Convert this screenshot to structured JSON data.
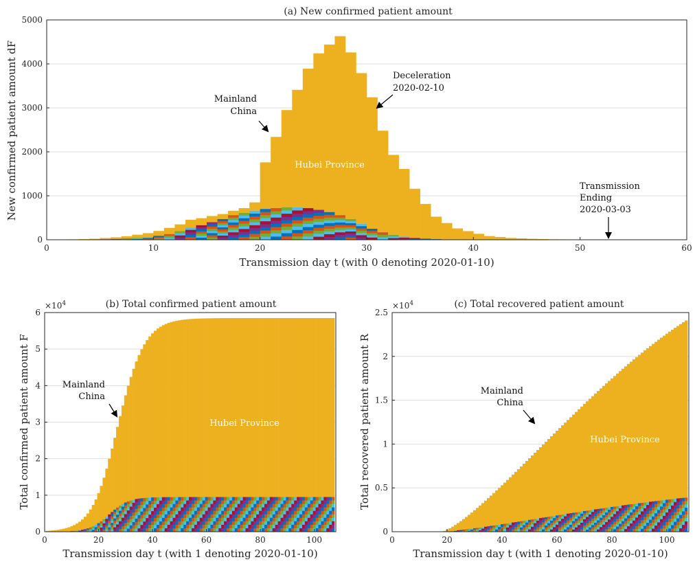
{
  "chart_data": [
    {
      "id": "a",
      "type": "bar",
      "stacked": true,
      "title": "(a) New confirmed patient amount",
      "xlabel": "Transmission day t (with 0 denoting 2020-01-10)",
      "ylabel": "New confirmed patient amount dF",
      "xlim": [
        0,
        60
      ],
      "ylim": [
        0,
        5000
      ],
      "xticks": [
        "0",
        "10",
        "20",
        "30",
        "40",
        "50",
        "60"
      ],
      "yticks": [
        "0",
        "1000",
        "2000",
        "3000",
        "4000",
        "5000"
      ],
      "grid": true,
      "series": [
        {
          "label": "Hubei Province",
          "color": "#EDB120",
          "x": [
            1,
            2,
            3,
            4,
            5,
            6,
            7,
            8,
            9,
            10,
            11,
            12,
            13,
            14,
            15,
            16,
            17,
            18,
            19,
            20,
            21,
            22,
            23,
            24,
            25,
            26,
            27,
            28,
            29,
            30,
            31,
            32,
            33,
            34,
            35,
            36,
            37,
            38,
            39,
            40,
            41,
            42,
            43,
            44,
            45,
            46,
            47,
            48,
            49,
            50,
            51,
            52,
            53,
            54,
            55,
            56,
            57,
            58,
            59,
            60
          ],
          "values": [
            3,
            4,
            6,
            10,
            15,
            28,
            38,
            50,
            70,
            90,
            110,
            140,
            155,
            175,
            160,
            140,
            115,
            100,
            110,
            190,
            1060,
            1620,
            2210,
            2670,
            3170,
            3560,
            3810,
            4070,
            3790,
            3430,
            2990,
            2310,
            1820,
            1540,
            1120,
            790,
            510,
            370,
            250,
            190,
            130,
            80,
            60,
            40,
            30,
            20,
            15,
            10,
            8,
            6,
            5,
            4,
            3,
            3,
            2,
            2,
            1,
            1,
            1,
            1
          ]
        },
        {
          "label": "Mainland China",
          "color": "#D95319",
          "x": [
            1,
            2,
            3,
            4,
            5,
            6,
            7,
            8,
            9,
            10,
            11,
            12,
            13,
            14,
            15,
            16,
            17,
            18,
            19,
            20,
            21,
            22,
            23,
            24,
            25,
            26,
            27,
            28,
            29,
            30,
            31,
            32,
            33,
            34,
            35,
            36,
            37,
            38,
            39,
            40,
            41,
            42,
            43,
            44,
            45,
            46,
            47,
            48,
            49,
            50,
            51,
            52,
            53,
            54,
            55,
            56,
            57,
            58,
            59,
            60
          ],
          "values": [
            2,
            3,
            4,
            5,
            8,
            12,
            18,
            30,
            45,
            60,
            90,
            130,
            195,
            280,
            330,
            400,
            470,
            560,
            610,
            660,
            700,
            720,
            740,
            740,
            720,
            680,
            630,
            560,
            470,
            360,
            250,
            170,
            110,
            70,
            40,
            25,
            15,
            10,
            8,
            6,
            5,
            4,
            3,
            2,
            2,
            2,
            1,
            1,
            1,
            1,
            1,
            1,
            1,
            1,
            1,
            1,
            1,
            1,
            1,
            1
          ]
        }
      ],
      "annotations": [
        {
          "text": [
            "Mainland",
            "China"
          ],
          "x": 21,
          "y": 2420
        },
        {
          "text": [
            "Deceleration",
            "2020-02-10"
          ],
          "x": 30.5,
          "y": 2900
        },
        {
          "text": [
            "Transmission",
            "Ending",
            "2020-03-03"
          ],
          "x": 52.5,
          "y": 0
        }
      ],
      "inner_label": "Hubei Province"
    },
    {
      "id": "b",
      "type": "bar",
      "stacked": true,
      "title": "(b) Total confirmed patient amount",
      "xlabel": "Transmission day t (with 1 denoting 2020-01-10)",
      "ylabel": "Total confirmed patient amount F",
      "y_multiplier": "×10",
      "y_multiplier_exp": "4",
      "xlim": [
        0,
        108
      ],
      "ylim": [
        0,
        60000
      ],
      "xticks": [
        "0",
        "20",
        "40",
        "60",
        "80",
        "100"
      ],
      "yticks": [
        "0",
        "1",
        "2",
        "3",
        "4",
        "5",
        "6"
      ],
      "grid": true,
      "series": [
        {
          "label": "Hubei Province",
          "color": "#EDB120",
          "x_range": [
            1,
            107
          ],
          "curve": "logistic",
          "final": 58500,
          "midpoint": 28,
          "rate": 0.2
        },
        {
          "label": "Mainland China",
          "color": "#D95319",
          "x_range": [
            1,
            107
          ],
          "curve": "logistic",
          "final": 9500,
          "midpoint": 24,
          "rate": 0.28
        }
      ],
      "annotations": [
        {
          "text": [
            "Mainland",
            "China"
          ],
          "x": 27,
          "y": 30500
        }
      ],
      "inner_label": "Hubei Province"
    },
    {
      "id": "c",
      "type": "bar",
      "stacked": true,
      "title": "(c) Total recovered patient amount",
      "xlabel": "Transmission day t (with 1 denoting 2020-01-10)",
      "ylabel": "Total recovered patient amount R",
      "y_multiplier": "×10",
      "y_multiplier_exp": "4",
      "xlim": [
        0,
        108
      ],
      "ylim": [
        0,
        25000
      ],
      "xticks": [
        "0",
        "20",
        "40",
        "60",
        "80",
        "100"
      ],
      "yticks": [
        "0",
        "0.5",
        "1",
        "1.5",
        "2",
        "2.5"
      ],
      "grid": true,
      "series": [
        {
          "label": "Hubei Province",
          "color": "#EDB120",
          "x_range": [
            1,
            107
          ],
          "curve": "rising",
          "final": 24100,
          "start": 18
        },
        {
          "label": "Mainland China",
          "color": "#D95319",
          "x_range": [
            1,
            107
          ],
          "curve": "rising",
          "final": 3900,
          "start": 18
        }
      ],
      "annotations": [
        {
          "text": [
            "Mainland",
            "China"
          ],
          "x": 53,
          "y": 12000
        }
      ],
      "inner_label": "Hubei Province"
    }
  ],
  "stack_palette": [
    "#0072BD",
    "#D95319",
    "#77AC30",
    "#4DBEEE",
    "#A2142F",
    "#7E2F8E",
    "#0072BD",
    "#D95319",
    "#77AC30",
    "#4DBEEE"
  ]
}
